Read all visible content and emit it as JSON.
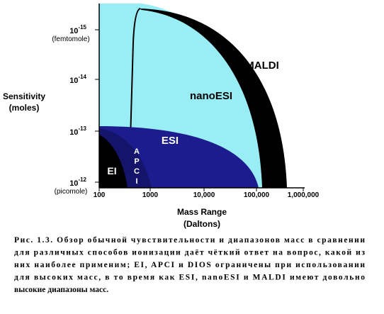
{
  "figure": {
    "y_axis": {
      "title_lines": [
        "Sensitivity",
        "(moles)"
      ],
      "ticks": [
        {
          "base": "10",
          "exp": "-15",
          "note": "(femtomole)"
        },
        {
          "base": "10",
          "exp": "-14"
        },
        {
          "base": "10",
          "exp": "-13"
        },
        {
          "base": "10",
          "exp": "-12",
          "note": "(picomole)"
        }
      ]
    },
    "x_axis": {
      "title_lines": [
        "Mass Range",
        "(Daltons)"
      ],
      "ticks": [
        "100",
        "1000",
        "10,000",
        "100,000",
        "1,000,000"
      ]
    },
    "regions": {
      "maldi": "MALDI",
      "nanoesi": "nanoESI",
      "esi": "ESI",
      "apci": [
        "A",
        "P",
        "C",
        "I"
      ],
      "ei": "EI"
    }
  },
  "caption": {
    "lines": [
      "Рис. 1.3. Обзор обычной чувствительности и диапазонов масс в сравнении",
      "для различных способов ионизации даёт чёткий ответ на вопрос, какой из",
      "них наиболее применим; EI, APCI и DIOS ограничены при использовании",
      "для высоких масс, в то время как ESI, nanoESI и MALDI имеют довольно",
      "высокие диапазоны масс."
    ]
  }
}
